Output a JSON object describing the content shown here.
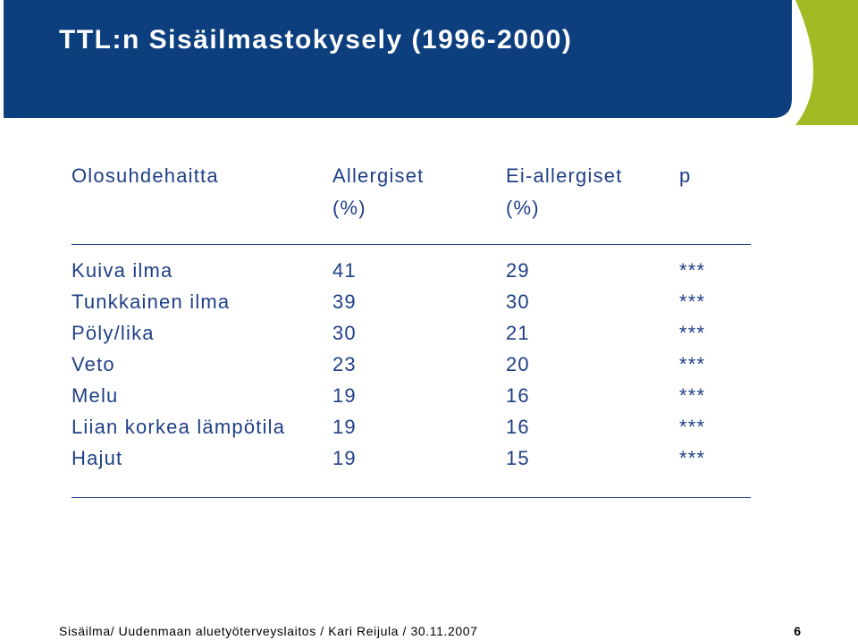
{
  "title": "TTL:n Sisäilmastokysely (1996-2000)",
  "table": {
    "headers": {
      "col1": "Olosuhdehaitta",
      "col2_line1": "Allergiset",
      "col2_line2": "(%)",
      "col3_line1": "Ei-allergiset",
      "col3_line2": "(%)",
      "col4": "p"
    },
    "rows": [
      {
        "label": "Kuiva ilma",
        "allergic": "41",
        "nonallergic": "29",
        "p": "***"
      },
      {
        "label": "Tunkkainen ilma",
        "allergic": "39",
        "nonallergic": "30",
        "p": "***"
      },
      {
        "label": "Pöly/lika",
        "allergic": "30",
        "nonallergic": "21",
        "p": "***"
      },
      {
        "label": "Veto",
        "allergic": "23",
        "nonallergic": "20",
        "p": "***"
      },
      {
        "label": "Melu",
        "allergic": "19",
        "nonallergic": "16",
        "p": "***"
      },
      {
        "label": "Liian korkea lämpötila",
        "allergic": "19",
        "nonallergic": "16",
        "p": "***"
      },
      {
        "label": "Hajut",
        "allergic": "19",
        "nonallergic": "15",
        "p": "***"
      }
    ]
  },
  "footer": {
    "text": "Sisäilma/ Uudenmaan aluetyöterveyslaitos / Kari Reijula / 30.11.2007",
    "page_number": "6"
  },
  "colors": {
    "header_blue": "#0d3f7f",
    "accent_green": "#a3ba25",
    "text_blue": "#1f3f86"
  }
}
